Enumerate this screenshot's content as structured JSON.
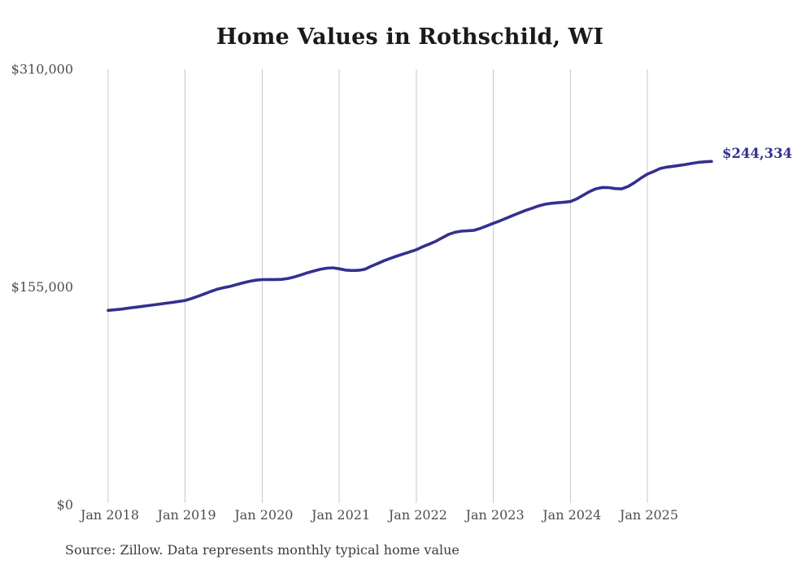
{
  "page": {
    "source_note": "Source: Zillow. Data represents monthly typical home value",
    "colors": {
      "line": "#342f90",
      "end_label": "#342f90",
      "gridline": "#c9c9c9",
      "axis_text": "#4d4d4d",
      "title_text": "#1a1a1a",
      "background": "#ffffff"
    }
  },
  "chart_data": {
    "type": "line",
    "title": "Home Values in Rothschild, WI",
    "end_label": "$244,334",
    "latest_value": 244334,
    "xlabel": "",
    "ylabel": "",
    "ylim": [
      0,
      310000
    ],
    "grid": "vertical-only",
    "legend": "none",
    "y_ticks": [
      {
        "value": 0,
        "label": "$0"
      },
      {
        "value": 155000,
        "label": "$155,000"
      },
      {
        "value": 310000,
        "label": "$310,000"
      }
    ],
    "x_tick_labels": [
      "Jan 2018",
      "Jan 2019",
      "Jan 2020",
      "Jan 2021",
      "Jan 2022",
      "Jan 2023",
      "Jan 2024",
      "Jan 2025"
    ],
    "x_start": "Jan 2018",
    "x_end": "Nov 2025",
    "frequency": "monthly",
    "series": [
      {
        "name": "Typical home value",
        "values": [
          138300,
          138700,
          139200,
          139800,
          140400,
          141000,
          141600,
          142200,
          142800,
          143400,
          144000,
          144700,
          145400,
          146800,
          148400,
          150100,
          151800,
          153400,
          154500,
          155400,
          156700,
          157900,
          159000,
          159800,
          160200,
          160300,
          160300,
          160400,
          161000,
          162100,
          163500,
          165000,
          166300,
          167500,
          168300,
          168600,
          167900,
          167000,
          166700,
          166800,
          167600,
          169800,
          171700,
          173700,
          175400,
          177000,
          178500,
          180000,
          181500,
          183600,
          185500,
          187400,
          189900,
          192300,
          193900,
          194700,
          195000,
          195300,
          196700,
          198500,
          200300,
          202000,
          203900,
          205800,
          207600,
          209400,
          211000,
          212600,
          213800,
          214500,
          214900,
          215300,
          215800,
          217700,
          220300,
          222900,
          224900,
          225800,
          225700,
          225000,
          224800,
          226500,
          229300,
          232500,
          235300,
          237200,
          239300,
          240300,
          240900,
          241500,
          242200,
          243000,
          243700,
          244100,
          244334
        ]
      }
    ]
  }
}
